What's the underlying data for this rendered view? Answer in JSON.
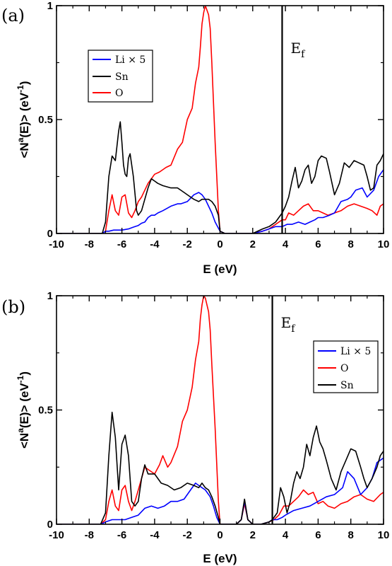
{
  "chart_data": [
    {
      "type": "line",
      "panel_label": "(a)",
      "xlabel": "E (eV)",
      "ylabel_parts": [
        "<N",
        "a",
        "(E)> (eV",
        "-1",
        ")"
      ],
      "xlim": [
        -10,
        10
      ],
      "ylim": [
        0,
        1
      ],
      "xticks": [
        "-10",
        "-8",
        "-6",
        "-4",
        "-2",
        "0",
        "2",
        "4",
        "6",
        "8",
        "10"
      ],
      "yticks": [
        "0",
        "0.5",
        "1"
      ],
      "fermi_energy": 3.8,
      "fermi_label": "E",
      "fermi_sub": "f",
      "legend_position": "upper-left",
      "legend_order": [
        0,
        1,
        2
      ],
      "series": [
        {
          "name": "Li × 5",
          "color": "#0000ff",
          "x": [
            -10,
            -7.2,
            -7,
            -6.8,
            -6.5,
            -6.2,
            -6,
            -5.6,
            -5.4,
            -5.2,
            -5,
            -4.8,
            -4.6,
            -4.4,
            -4.2,
            -4,
            -3.8,
            -3.5,
            -3,
            -2.6,
            -2.4,
            -2,
            -1.6,
            -1.3,
            -1.1,
            -0.9,
            -0.7,
            -0.5,
            -0.3,
            0,
            0.3,
            1,
            2,
            2.6,
            3.0,
            3.4,
            3.8,
            4.1,
            4.4,
            4.8,
            5.2,
            5.5,
            5.8,
            6.0,
            6.3,
            6.7,
            7.0,
            7.4,
            7.8,
            8.0,
            8.3,
            8.7,
            9.0,
            9.4,
            9.7,
            10
          ],
          "y": [
            0,
            0,
            0.01,
            0.01,
            0.015,
            0.015,
            0.015,
            0.02,
            0.025,
            0.03,
            0.035,
            0.045,
            0.05,
            0.07,
            0.08,
            0.08,
            0.09,
            0.1,
            0.12,
            0.13,
            0.13,
            0.14,
            0.17,
            0.18,
            0.17,
            0.15,
            0.12,
            0.09,
            0.05,
            0.01,
            0,
            0,
            0,
            0.01,
            0.02,
            0.03,
            0.03,
            0.04,
            0.04,
            0.05,
            0.04,
            0.05,
            0.06,
            0.07,
            0.07,
            0.08,
            0.09,
            0.14,
            0.15,
            0.16,
            0.19,
            0.2,
            0.16,
            0.19,
            0.25,
            0.28
          ]
        },
        {
          "name": "Sn",
          "color": "#000000",
          "x": [
            -10,
            -7.2,
            -7.0,
            -6.8,
            -6.6,
            -6.4,
            -6.2,
            -6.1,
            -6.0,
            -5.9,
            -5.8,
            -5.7,
            -5.6,
            -5.5,
            -5.3,
            -5.1,
            -5.0,
            -4.8,
            -4.6,
            -4.4,
            -4.2,
            -4.0,
            -3.8,
            -3.5,
            -3.0,
            -2.6,
            -2.2,
            -1.8,
            -1.6,
            -1.3,
            -1.1,
            -0.9,
            -0.7,
            -0.5,
            -0.3,
            -0.1,
            0,
            0.3,
            1,
            2,
            2.6,
            3.0,
            3.4,
            3.8,
            4.0,
            4.2,
            4.4,
            4.6,
            4.8,
            5.0,
            5.2,
            5.4,
            5.6,
            5.8,
            6.0,
            6.2,
            6.5,
            6.7,
            7.0,
            7.3,
            7.6,
            7.9,
            8.2,
            8.5,
            8.8,
            9.0,
            9.2,
            9.4,
            9.6,
            9.8,
            10
          ],
          "y": [
            0,
            0,
            0.05,
            0.25,
            0.34,
            0.32,
            0.45,
            0.49,
            0.4,
            0.3,
            0.26,
            0.25,
            0.33,
            0.35,
            0.25,
            0.1,
            0.08,
            0.1,
            0.15,
            0.2,
            0.24,
            0.23,
            0.22,
            0.21,
            0.2,
            0.2,
            0.18,
            0.16,
            0.15,
            0.14,
            0.15,
            0.15,
            0.15,
            0.14,
            0.12,
            0.08,
            0.01,
            0,
            0,
            0,
            0.02,
            0.03,
            0.05,
            0.09,
            0.12,
            0.16,
            0.23,
            0.29,
            0.2,
            0.23,
            0.28,
            0.3,
            0.22,
            0.25,
            0.32,
            0.34,
            0.33,
            0.27,
            0.17,
            0.22,
            0.31,
            0.29,
            0.32,
            0.31,
            0.3,
            0.25,
            0.19,
            0.2,
            0.3,
            0.32,
            0.35
          ]
        },
        {
          "name": "O",
          "color": "#ff0000",
          "x": [
            -10,
            -7.2,
            -7.0,
            -6.8,
            -6.6,
            -6.4,
            -6.2,
            -6.0,
            -5.8,
            -5.6,
            -5.4,
            -5.2,
            -5.0,
            -4.8,
            -4.6,
            -4.4,
            -4.2,
            -4.0,
            -3.7,
            -3.3,
            -3.0,
            -2.6,
            -2.3,
            -2.0,
            -1.7,
            -1.5,
            -1.3,
            -1.2,
            -1.1,
            -1.0,
            -0.9,
            -0.8,
            -0.7,
            -0.6,
            -0.5,
            -0.3,
            -0.1,
            0,
            0.3,
            1,
            2,
            2.6,
            3.0,
            3.4,
            3.8,
            4.0,
            4.2,
            4.5,
            4.8,
            5.1,
            5.4,
            5.7,
            6.0,
            6.3,
            6.6,
            7.0,
            7.4,
            7.8,
            8.2,
            8.6,
            9.0,
            9.3,
            9.6,
            9.8,
            10
          ],
          "y": [
            0,
            0,
            0.01,
            0.1,
            0.17,
            0.1,
            0.08,
            0.16,
            0.17,
            0.09,
            0.07,
            0.1,
            0.14,
            0.16,
            0.19,
            0.22,
            0.24,
            0.26,
            0.27,
            0.29,
            0.3,
            0.37,
            0.4,
            0.5,
            0.55,
            0.66,
            0.73,
            0.82,
            0.92,
            0.97,
            1.0,
            0.98,
            0.96,
            0.9,
            0.75,
            0.4,
            0.1,
            0.01,
            0,
            0,
            0,
            0.01,
            0.02,
            0.04,
            0.06,
            0.06,
            0.09,
            0.08,
            0.1,
            0.12,
            0.13,
            0.1,
            0.1,
            0.09,
            0.08,
            0.09,
            0.1,
            0.12,
            0.13,
            0.12,
            0.11,
            0.1,
            0.08,
            0.12,
            0.13
          ]
        }
      ]
    },
    {
      "type": "line",
      "panel_label": "(b)",
      "xlabel": "E  (eV)",
      "ylabel_parts": [
        "<N",
        "a",
        "(E)>  (eV",
        "-1",
        ")"
      ],
      "xlim": [
        -10,
        10
      ],
      "ylim": [
        0,
        1
      ],
      "xticks": [
        "-10",
        "-8",
        "-6",
        "-4",
        "-2",
        "0",
        "2",
        "4",
        "6",
        "8",
        "10"
      ],
      "yticks": [
        "0",
        "0.5",
        "1"
      ],
      "fermi_energy": 3.2,
      "fermi_label": "E",
      "fermi_sub": "f",
      "legend_position": "upper-right",
      "legend_order": [
        0,
        2,
        1
      ],
      "series": [
        {
          "name": "Li × 5",
          "color": "#0000ff",
          "x": [
            -10,
            -7.3,
            -7.0,
            -6.6,
            -6.2,
            -5.8,
            -5.4,
            -5.0,
            -4.6,
            -4.2,
            -3.8,
            -3.4,
            -3.0,
            -2.6,
            -2.2,
            -1.8,
            -1.5,
            -1.3,
            -1.1,
            -0.9,
            -0.6,
            -0.4,
            -0.2,
            0,
            0.3,
            1.0,
            1.3,
            1.5,
            1.7,
            2.0,
            2.5,
            3.0,
            3.2,
            3.5,
            3.8,
            4.0,
            4.5,
            5.0,
            5.5,
            6.0,
            6.5,
            7.0,
            7.5,
            7.8,
            8.2,
            8.6,
            9.0,
            9.3,
            9.6,
            10
          ],
          "y": [
            0,
            0,
            0.01,
            0.02,
            0.02,
            0.02,
            0.03,
            0.04,
            0.07,
            0.08,
            0.07,
            0.08,
            0.1,
            0.1,
            0.11,
            0.15,
            0.18,
            0.17,
            0.16,
            0.15,
            0.12,
            0.08,
            0.03,
            0.0,
            0,
            0,
            0.02,
            0.1,
            0.02,
            0,
            0,
            0.01,
            0.02,
            0.02,
            0.03,
            0.04,
            0.06,
            0.07,
            0.08,
            0.1,
            0.12,
            0.13,
            0.16,
            0.23,
            0.2,
            0.13,
            0.16,
            0.2,
            0.27,
            0.29
          ]
        },
        {
          "name": "Sn",
          "color": "#000000",
          "x": [
            -10,
            -7.3,
            -7.0,
            -6.8,
            -6.6,
            -6.4,
            -6.2,
            -6.0,
            -5.8,
            -5.6,
            -5.4,
            -5.2,
            -5.0,
            -4.8,
            -4.6,
            -4.4,
            -4.0,
            -3.6,
            -3.2,
            -2.8,
            -2.4,
            -2.0,
            -1.6,
            -1.3,
            -1.1,
            -0.9,
            -0.7,
            -0.5,
            -0.3,
            -0.1,
            0,
            0.3,
            1.0,
            1.3,
            1.5,
            1.7,
            2.0,
            2.5,
            3.0,
            3.2,
            3.5,
            3.7,
            3.9,
            4.1,
            4.3,
            4.5,
            4.7,
            4.9,
            5.1,
            5.3,
            5.5,
            5.7,
            5.9,
            6.1,
            6.3,
            6.5,
            6.8,
            7.1,
            7.4,
            7.7,
            8.0,
            8.3,
            8.6,
            8.8,
            9.0,
            9.3,
            9.6,
            9.8,
            10
          ],
          "y": [
            0,
            0,
            0.05,
            0.3,
            0.49,
            0.38,
            0.15,
            0.35,
            0.39,
            0.3,
            0.1,
            0.08,
            0.1,
            0.2,
            0.26,
            0.22,
            0.22,
            0.18,
            0.17,
            0.15,
            0.16,
            0.18,
            0.17,
            0.16,
            0.18,
            0.16,
            0.15,
            0.12,
            0.08,
            0.03,
            0,
            0,
            0,
            0.02,
            0.11,
            0.02,
            0,
            0,
            0.01,
            0.02,
            0.05,
            0.16,
            0.12,
            0.05,
            0.1,
            0.18,
            0.23,
            0.2,
            0.25,
            0.35,
            0.3,
            0.38,
            0.43,
            0.36,
            0.33,
            0.28,
            0.2,
            0.15,
            0.23,
            0.28,
            0.33,
            0.32,
            0.25,
            0.2,
            0.16,
            0.2,
            0.25,
            0.3,
            0.32
          ]
        },
        {
          "name": "O",
          "color": "#ff0000",
          "x": [
            -10,
            -7.3,
            -7.0,
            -6.8,
            -6.6,
            -6.4,
            -6.2,
            -6.0,
            -5.8,
            -5.6,
            -5.4,
            -5.2,
            -5.0,
            -4.8,
            -4.6,
            -4.4,
            -4.0,
            -3.7,
            -3.5,
            -3.2,
            -3.0,
            -2.6,
            -2.3,
            -2.0,
            -1.7,
            -1.5,
            -1.3,
            -1.2,
            -1.1,
            -1.0,
            -0.9,
            -0.8,
            -0.7,
            -0.6,
            -0.5,
            -0.3,
            -0.1,
            0,
            0.3,
            1.0,
            1.3,
            1.5,
            1.7,
            2.0,
            2.5,
            3.0,
            3.3,
            3.6,
            3.9,
            4.2,
            4.5,
            4.8,
            5.1,
            5.4,
            5.7,
            6.0,
            6.3,
            6.6,
            7.0,
            7.4,
            7.8,
            8.2,
            8.6,
            9.0,
            9.4,
            9.8,
            10
          ],
          "y": [
            0,
            0,
            0.02,
            0.1,
            0.15,
            0.08,
            0.06,
            0.15,
            0.17,
            0.1,
            0.06,
            0.1,
            0.15,
            0.2,
            0.25,
            0.24,
            0.22,
            0.26,
            0.3,
            0.25,
            0.27,
            0.34,
            0.45,
            0.5,
            0.6,
            0.72,
            0.8,
            0.9,
            0.96,
            1.0,
            0.99,
            0.96,
            0.93,
            0.85,
            0.7,
            0.42,
            0.1,
            0,
            0,
            0,
            0.02,
            0.09,
            0.02,
            0,
            0,
            0.01,
            0.02,
            0.04,
            0.08,
            0.08,
            0.1,
            0.12,
            0.15,
            0.13,
            0.14,
            0.09,
            0.1,
            0.08,
            0.07,
            0.09,
            0.1,
            0.12,
            0.13,
            0.11,
            0.1,
            0.13,
            0.14
          ]
        }
      ]
    }
  ]
}
